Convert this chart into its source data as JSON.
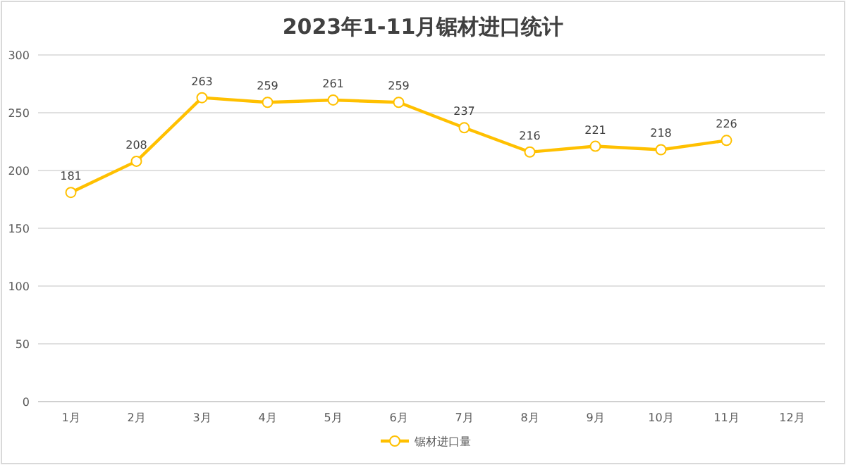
{
  "chart_data": {
    "type": "line",
    "title": "2023年1-11月锯材进口统计",
    "categories": [
      "1月",
      "2月",
      "3月",
      "4月",
      "5月",
      "6月",
      "7月",
      "8月",
      "9月",
      "10月",
      "11月",
      "12月"
    ],
    "series": [
      {
        "name": "锯材进口量",
        "color": "#ffc000",
        "values": [
          181,
          208,
          263,
          259,
          261,
          259,
          237,
          216,
          221,
          218,
          226,
          null
        ]
      }
    ],
    "ylim": [
      0,
      300
    ],
    "yticks": [
      0,
      50,
      100,
      150,
      200,
      250,
      300
    ],
    "grid": "y",
    "legend": "bottom",
    "marker": "circle",
    "line_style": "solid",
    "data_labels": true
  }
}
